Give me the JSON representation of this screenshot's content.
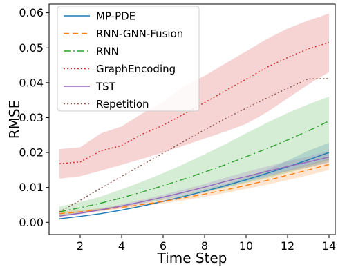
{
  "chart_data": {
    "type": "line",
    "title": "",
    "xlabel": "Time Step",
    "ylabel": "RMSE",
    "xlim": [
      0.5,
      14.3
    ],
    "ylim": [
      -0.0035,
      0.0625
    ],
    "xticks": [
      2,
      4,
      6,
      8,
      10,
      12,
      14
    ],
    "xtick_labels": [
      "2",
      "4",
      "6",
      "8",
      "10",
      "12",
      "14"
    ],
    "yticks": [
      0.0,
      0.01,
      0.02,
      0.03,
      0.04,
      0.05,
      0.06
    ],
    "ytick_labels": [
      "0.00",
      "0.01",
      "0.02",
      "0.03",
      "0.04",
      "0.05",
      "0.06"
    ],
    "grid": false,
    "legend_position": "top-left",
    "x": [
      1,
      2,
      3,
      4,
      5,
      6,
      7,
      8,
      9,
      10,
      11,
      12,
      13,
      14
    ],
    "series": [
      {
        "name": "MP-PDE",
        "color": "#1f77b4",
        "dash": "solid",
        "values": [
          0.001,
          0.0017,
          0.0025,
          0.0035,
          0.0047,
          0.006,
          0.0074,
          0.0089,
          0.0105,
          0.0122,
          0.014,
          0.0159,
          0.0179,
          0.02
        ],
        "lower": [
          0.001,
          0.0017,
          0.0025,
          0.0034,
          0.0045,
          0.0058,
          0.0071,
          0.0085,
          0.01,
          0.0116,
          0.0131,
          0.0147,
          0.0163,
          0.0178
        ],
        "upper": [
          0.001,
          0.0018,
          0.0027,
          0.0037,
          0.0049,
          0.0063,
          0.0078,
          0.0094,
          0.011,
          0.0128,
          0.0151,
          0.0177,
          0.0205,
          0.0228
        ]
      },
      {
        "name": "RNN-GNN-Fusion",
        "color": "#ff7f0e",
        "dash": "8,5",
        "values": [
          0.0025,
          0.003,
          0.0036,
          0.0043,
          0.0051,
          0.006,
          0.007,
          0.0081,
          0.0093,
          0.0106,
          0.012,
          0.0135,
          0.015,
          0.0166
        ],
        "lower": [
          0.002,
          0.0026,
          0.0032,
          0.0039,
          0.0046,
          0.0054,
          0.0063,
          0.0073,
          0.0084,
          0.0096,
          0.0108,
          0.0121,
          0.0135,
          0.015
        ],
        "upper": [
          0.003,
          0.0035,
          0.0041,
          0.0048,
          0.0056,
          0.0066,
          0.0077,
          0.0089,
          0.0102,
          0.0116,
          0.0132,
          0.0149,
          0.0166,
          0.0183
        ]
      },
      {
        "name": "RNN",
        "color": "#2ca02c",
        "dash": "10,4,2,4",
        "values": [
          0.003,
          0.0042,
          0.0055,
          0.007,
          0.0087,
          0.0105,
          0.0124,
          0.0144,
          0.0165,
          0.0188,
          0.0211,
          0.0236,
          0.0262,
          0.029
        ],
        "lower": [
          0.002,
          0.0028,
          0.0036,
          0.0045,
          0.0055,
          0.0065,
          0.0076,
          0.0088,
          0.01,
          0.0113,
          0.0127,
          0.0142,
          0.0157,
          0.0173
        ],
        "upper": [
          0.0045,
          0.0058,
          0.0074,
          0.0095,
          0.0117,
          0.0141,
          0.0167,
          0.0195,
          0.0224,
          0.0255,
          0.0285,
          0.0313,
          0.0338,
          0.036
        ]
      },
      {
        "name": "GraphEncoding",
        "color": "#d62728",
        "dash": "2,3",
        "values": [
          0.0168,
          0.0173,
          0.0205,
          0.022,
          0.0253,
          0.0278,
          0.031,
          0.0343,
          0.0377,
          0.041,
          0.0444,
          0.0472,
          0.0497,
          0.0515
        ],
        "lower": [
          0.0125,
          0.0132,
          0.0148,
          0.0165,
          0.0182,
          0.02,
          0.022,
          0.024,
          0.026,
          0.0282,
          0.0315,
          0.0355,
          0.0395,
          0.043
        ],
        "upper": [
          0.021,
          0.0215,
          0.0255,
          0.0275,
          0.0312,
          0.0345,
          0.039,
          0.042,
          0.0455,
          0.049,
          0.0525,
          0.0555,
          0.0578,
          0.0598
        ]
      },
      {
        "name": "TST",
        "color": "#9467bd",
        "dash": "solid",
        "values": [
          0.0018,
          0.0026,
          0.0036,
          0.0047,
          0.0059,
          0.0072,
          0.0086,
          0.0101,
          0.0117,
          0.0131,
          0.0146,
          0.016,
          0.0173,
          0.0187
        ],
        "lower": [
          0.0015,
          0.0023,
          0.0032,
          0.0042,
          0.0053,
          0.0065,
          0.0078,
          0.0092,
          0.0106,
          0.0119,
          0.0133,
          0.0146,
          0.0158,
          0.0171
        ],
        "upper": [
          0.0021,
          0.003,
          0.004,
          0.0052,
          0.0065,
          0.0079,
          0.0094,
          0.011,
          0.0128,
          0.0144,
          0.016,
          0.0175,
          0.0189,
          0.0204
        ]
      },
      {
        "name": "Repetition",
        "color": "#8c564b",
        "dash": "2,3",
        "values": [
          0.003,
          0.0063,
          0.0098,
          0.0132,
          0.0165,
          0.0198,
          0.0232,
          0.0265,
          0.0297,
          0.0327,
          0.0356,
          0.0384,
          0.0411,
          0.0412
        ]
      }
    ]
  }
}
